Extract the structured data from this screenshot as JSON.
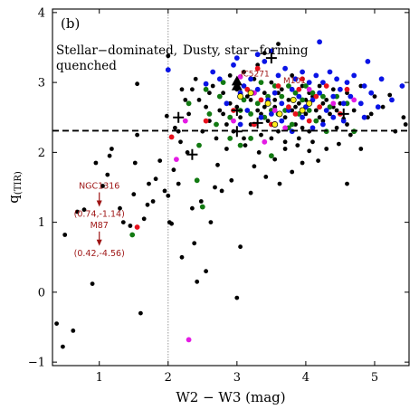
{
  "chart_data": {
    "type": "scatter",
    "panel_label": "(b)",
    "xlabel": "W2 − W3 (mag)",
    "ylabel_base": "q",
    "ylabel_sub": "(TIR)",
    "xlim": [
      0.32,
      5.5
    ],
    "ylim": [
      -1.05,
      4.05
    ],
    "xticks": [
      1,
      2,
      3,
      4,
      5
    ],
    "yticks": [
      -1,
      0,
      1,
      2,
      3,
      4
    ],
    "grid": false,
    "divider_x": 2.0,
    "threshold_q": 2.31,
    "region_left_label": [
      "Stellar−dominated,",
      "quenched"
    ],
    "region_right_label": [
      "Dusty, star−forming"
    ],
    "colors": {
      "black": "#000000",
      "blue": "#0a14e6",
      "green": "#127a12",
      "red": "#e8101c",
      "magenta": "#e41be4",
      "yellow": "#ffee1a",
      "annotation": "#9e1515"
    },
    "series": {
      "black": [
        [
          0.38,
          -0.45
        ],
        [
          0.47,
          -0.78
        ],
        [
          0.62,
          -0.55
        ],
        [
          0.5,
          0.82
        ],
        [
          0.68,
          1.15
        ],
        [
          0.78,
          1.18
        ],
        [
          0.9,
          0.12
        ],
        [
          0.95,
          1.85
        ],
        [
          1.05,
          1.52
        ],
        [
          1.12,
          1.68
        ],
        [
          1.15,
          1.95
        ],
        [
          1.18,
          2.05
        ],
        [
          1.3,
          1.2
        ],
        [
          1.35,
          1.0
        ],
        [
          1.45,
          0.95
        ],
        [
          1.5,
          1.4
        ],
        [
          1.52,
          1.85
        ],
        [
          1.55,
          2.25
        ],
        [
          1.55,
          2.98
        ],
        [
          1.6,
          -0.3
        ],
        [
          1.65,
          1.05
        ],
        [
          1.7,
          1.25
        ],
        [
          1.72,
          1.55
        ],
        [
          1.78,
          1.3
        ],
        [
          1.82,
          1.62
        ],
        [
          1.88,
          1.88
        ],
        [
          1.95,
          1.45
        ],
        [
          1.98,
          2.52
        ],
        [
          2.0,
          1.38
        ],
        [
          2.02,
          1.0
        ],
        [
          2.05,
          0.98
        ],
        [
          2.08,
          1.75
        ],
        [
          2.1,
          2.35
        ],
        [
          2.15,
          1.55
        ],
        [
          2.18,
          2.15
        ],
        [
          2.2,
          0.5
        ],
        [
          2.28,
          2.0
        ],
        [
          2.35,
          1.2
        ],
        [
          2.38,
          0.7
        ],
        [
          2.42,
          0.15
        ],
        [
          2.48,
          1.3
        ],
        [
          2.55,
          0.3
        ],
        [
          2.62,
          1.0
        ],
        [
          2.68,
          1.5
        ],
        [
          2.72,
          1.82
        ],
        [
          2.78,
          1.45
        ],
        [
          2.85,
          2.05
        ],
        [
          2.92,
          1.6
        ],
        [
          3.0,
          -0.08
        ],
        [
          3.05,
          0.65
        ],
        [
          3.12,
          2.1
        ],
        [
          3.2,
          1.42
        ],
        [
          3.25,
          1.8
        ],
        [
          3.32,
          2.0
        ],
        [
          3.42,
          1.65
        ],
        [
          3.55,
          1.9
        ],
        [
          3.62,
          1.55
        ],
        [
          3.7,
          2.05
        ],
        [
          3.8,
          1.72
        ],
        [
          3.88,
          2.1
        ],
        [
          3.95,
          1.85
        ],
        [
          4.05,
          2.02
        ],
        [
          4.18,
          1.88
        ],
        [
          4.3,
          2.05
        ],
        [
          4.48,
          2.12
        ],
        [
          4.55,
          2.48
        ],
        [
          4.6,
          1.55
        ],
        [
          4.65,
          2.25
        ],
        [
          4.8,
          2.05
        ],
        [
          4.95,
          2.55
        ],
        [
          5.12,
          2.65
        ],
        [
          5.22,
          2.82
        ],
        [
          5.3,
          2.3
        ],
        [
          5.42,
          2.5
        ],
        [
          5.45,
          2.4
        ],
        [
          2.0,
          3.38
        ],
        [
          2.4,
          3.05
        ],
        [
          3.6,
          3.55
        ],
        [
          3.4,
          3.42
        ],
        [
          2.35,
          2.9
        ],
        [
          2.25,
          2.75
        ],
        [
          2.15,
          2.3
        ],
        [
          2.3,
          2.55
        ],
        [
          2.55,
          2.65
        ],
        [
          2.6,
          2.45
        ],
        [
          2.5,
          2.3
        ],
        [
          2.45,
          2.75
        ],
        [
          2.65,
          2.95
        ],
        [
          2.7,
          2.2
        ],
        [
          2.75,
          2.6
        ],
        [
          2.8,
          2.85
        ],
        [
          2.85,
          2.4
        ],
        [
          2.9,
          2.7
        ],
        [
          2.95,
          2.3
        ],
        [
          3.0,
          2.9
        ],
        [
          3.05,
          2.5
        ],
        [
          3.1,
          2.2
        ],
        [
          3.15,
          2.8
        ],
        [
          3.2,
          2.4
        ],
        [
          3.25,
          3.05
        ],
        [
          3.3,
          2.6
        ],
        [
          3.35,
          2.25
        ],
        [
          3.4,
          2.85
        ],
        [
          3.45,
          2.45
        ],
        [
          3.5,
          3.0
        ],
        [
          3.55,
          2.65
        ],
        [
          3.6,
          2.3
        ],
        [
          3.65,
          2.9
        ],
        [
          3.7,
          2.5
        ],
        [
          3.75,
          2.75
        ],
        [
          3.8,
          3.1
        ],
        [
          3.85,
          2.4
        ],
        [
          3.9,
          2.7
        ],
        [
          3.95,
          2.95
        ],
        [
          4.0,
          2.55
        ],
        [
          4.05,
          2.3
        ],
        [
          4.1,
          2.8
        ],
        [
          4.15,
          2.6
        ],
        [
          4.2,
          2.95
        ],
        [
          4.25,
          2.45
        ],
        [
          4.3,
          2.75
        ],
        [
          4.35,
          2.55
        ],
        [
          4.4,
          2.9
        ],
        [
          4.45,
          2.35
        ],
        [
          4.5,
          2.7
        ],
        [
          4.6,
          2.85
        ],
        [
          4.7,
          2.6
        ],
        [
          4.8,
          2.95
        ],
        [
          4.9,
          2.5
        ],
        [
          5.0,
          2.8
        ],
        [
          3.1,
          3.15
        ],
        [
          3.3,
          3.25
        ],
        [
          3.5,
          2.2
        ],
        [
          3.7,
          2.15
        ],
        [
          3.9,
          2.2
        ],
        [
          4.1,
          2.15
        ],
        [
          2.9,
          3.1
        ],
        [
          3.55,
          2.75
        ],
        [
          3.85,
          2.65
        ],
        [
          4.05,
          2.85
        ],
        [
          4.25,
          2.7
        ],
        [
          4.45,
          2.6
        ],
        [
          3.35,
          2.55
        ],
        [
          3.65,
          2.45
        ],
        [
          3.95,
          2.35
        ],
        [
          2.6,
          2.85
        ],
        [
          2.8,
          2.55
        ],
        [
          3.0,
          2.65
        ],
        [
          3.2,
          2.75
        ],
        [
          3.4,
          2.65
        ],
        [
          3.6,
          2.85
        ],
        [
          3.8,
          2.6
        ],
        [
          4.0,
          2.75
        ],
        [
          4.2,
          2.5
        ],
        [
          4.4,
          2.65
        ],
        [
          4.6,
          2.4
        ],
        [
          2.2,
          2.9
        ]
      ],
      "blue": [
        [
          2.0,
          3.18
        ],
        [
          2.55,
          2.98
        ],
        [
          2.65,
          3.15
        ],
        [
          2.85,
          2.7
        ],
        [
          2.95,
          3.25
        ],
        [
          3.05,
          2.85
        ],
        [
          3.1,
          2.95
        ],
        [
          3.15,
          2.6
        ],
        [
          3.2,
          3.05
        ],
        [
          3.3,
          2.9
        ],
        [
          3.4,
          3.3
        ],
        [
          3.45,
          2.75
        ],
        [
          3.5,
          3.45
        ],
        [
          3.55,
          2.85
        ],
        [
          3.6,
          3.1
        ],
        [
          3.65,
          2.7
        ],
        [
          3.7,
          3.2
        ],
        [
          3.75,
          2.6
        ],
        [
          3.8,
          2.9
        ],
        [
          3.85,
          3.05
        ],
        [
          3.9,
          2.8
        ],
        [
          3.95,
          3.15
        ],
        [
          4.0,
          2.65
        ],
        [
          4.05,
          3.0
        ],
        [
          4.1,
          2.75
        ],
        [
          4.15,
          3.1
        ],
        [
          4.2,
          2.85
        ],
        [
          4.25,
          3.0
        ],
        [
          4.3,
          2.6
        ],
        [
          4.35,
          3.15
        ],
        [
          4.4,
          2.8
        ],
        [
          4.45,
          3.05
        ],
        [
          4.5,
          2.9
        ],
        [
          4.55,
          2.7
        ],
        [
          4.6,
          3.0
        ],
        [
          4.65,
          2.8
        ],
        [
          4.7,
          3.1
        ],
        [
          4.8,
          2.7
        ],
        [
          4.85,
          2.95
        ],
        [
          4.95,
          2.85
        ],
        [
          5.05,
          2.65
        ],
        [
          5.1,
          3.05
        ],
        [
          5.25,
          2.75
        ],
        [
          5.4,
          2.95
        ],
        [
          4.2,
          3.58
        ],
        [
          4.9,
          3.3
        ],
        [
          3.0,
          3.35
        ],
        [
          3.3,
          3.4
        ],
        [
          2.75,
          3.05
        ],
        [
          3.05,
          2.4
        ],
        [
          3.35,
          2.5
        ],
        [
          3.65,
          2.45
        ],
        [
          3.95,
          2.5
        ],
        [
          4.25,
          2.4
        ],
        [
          4.55,
          2.45
        ],
        [
          4.85,
          2.5
        ],
        [
          3.5,
          2.55
        ],
        [
          3.8,
          2.3
        ],
        [
          4.1,
          2.35
        ],
        [
          4.4,
          2.5
        ]
      ],
      "green": [
        [
          1.48,
          0.82
        ],
        [
          2.3,
          2.7
        ],
        [
          2.42,
          1.6
        ],
        [
          2.5,
          1.22
        ],
        [
          2.55,
          2.9
        ],
        [
          2.6,
          2.55
        ],
        [
          2.7,
          2.4
        ],
        [
          2.75,
          2.8
        ],
        [
          2.8,
          3.0
        ],
        [
          2.9,
          2.5
        ],
        [
          3.0,
          2.95
        ],
        [
          3.05,
          2.6
        ],
        [
          3.1,
          2.75
        ],
        [
          3.2,
          2.55
        ],
        [
          3.25,
          2.85
        ],
        [
          3.3,
          2.7
        ],
        [
          3.35,
          3.0
        ],
        [
          3.4,
          2.5
        ],
        [
          3.45,
          2.8
        ],
        [
          3.5,
          2.6
        ],
        [
          3.55,
          2.95
        ],
        [
          3.6,
          2.55
        ],
        [
          3.65,
          2.8
        ],
        [
          3.7,
          2.6
        ],
        [
          3.75,
          2.95
        ],
        [
          3.8,
          2.4
        ],
        [
          3.85,
          2.85
        ],
        [
          3.9,
          2.55
        ],
        [
          3.95,
          2.75
        ],
        [
          4.0,
          2.95
        ],
        [
          4.05,
          2.6
        ],
        [
          4.1,
          2.85
        ],
        [
          4.15,
          2.45
        ],
        [
          4.25,
          2.8
        ],
        [
          4.35,
          2.65
        ],
        [
          4.45,
          2.8
        ],
        [
          4.6,
          2.7
        ],
        [
          4.7,
          2.3
        ],
        [
          3.05,
          2.1
        ],
        [
          3.5,
          1.95
        ],
        [
          3.2,
          2.2
        ],
        [
          2.45,
          2.1
        ],
        [
          3.75,
          2.35
        ],
        [
          4.3,
          2.3
        ],
        [
          2.9,
          2.2
        ]
      ],
      "red": [
        [
          1.55,
          0.93
        ],
        [
          2.05,
          2.22
        ],
        [
          2.55,
          2.45
        ],
        [
          2.95,
          2.6
        ],
        [
          3.15,
          2.9
        ],
        [
          3.35,
          2.75
        ],
        [
          3.5,
          2.4
        ],
        [
          3.6,
          2.95
        ],
        [
          3.75,
          2.65
        ],
        [
          3.9,
          2.9
        ],
        [
          4.05,
          2.45
        ],
        [
          4.15,
          2.8
        ],
        [
          4.3,
          2.95
        ],
        [
          4.5,
          2.55
        ],
        [
          3.3,
          3.2
        ],
        [
          3.95,
          3.05
        ],
        [
          4.6,
          2.9
        ],
        [
          3.25,
          2.4
        ],
        [
          3.85,
          2.55
        ],
        [
          4.2,
          2.65
        ]
      ],
      "magenta": [
        [
          2.3,
          -0.68
        ],
        [
          2.12,
          1.9
        ],
        [
          2.25,
          2.45
        ],
        [
          3.05,
          3.08
        ],
        [
          3.4,
          2.15
        ],
        [
          3.25,
          2.85
        ],
        [
          3.7,
          2.35
        ],
        [
          4.05,
          2.9
        ],
        [
          4.4,
          2.7
        ],
        [
          2.95,
          2.45
        ],
        [
          3.55,
          2.6
        ],
        [
          4.7,
          2.75
        ]
      ],
      "yellow": [
        [
          3.05,
          2.8
        ],
        [
          3.45,
          2.7
        ],
        [
          3.62,
          2.55
        ],
        [
          3.82,
          2.75
        ],
        [
          3.95,
          2.6
        ],
        [
          4.05,
          2.7
        ],
        [
          3.2,
          2.85
        ],
        [
          3.55,
          2.4
        ]
      ],
      "triangles": [
        [
          3.0,
          3.02
        ],
        [
          3.0,
          2.95
        ]
      ],
      "plus": [
        [
          3.5,
          3.35
        ],
        [
          2.15,
          2.5
        ],
        [
          2.35,
          1.97
        ],
        [
          3.0,
          2.6
        ],
        [
          3.3,
          2.42
        ],
        [
          3.0,
          2.3
        ],
        [
          4.55,
          2.55
        ]
      ]
    },
    "annotations": [
      {
        "label": "NGC1316",
        "values": "(0.74,-1.14)",
        "x": 1.0,
        "y": 1.48
      },
      {
        "label": "M87",
        "values": "(0.42,-4.56)",
        "x": 1.0,
        "y": 0.92
      }
    ],
    "point_labels": [
      {
        "label": "IC5271",
        "x": 3.0,
        "y": 3.05
      },
      {
        "label": "M101",
        "x": 3.62,
        "y": 2.95
      }
    ]
  }
}
